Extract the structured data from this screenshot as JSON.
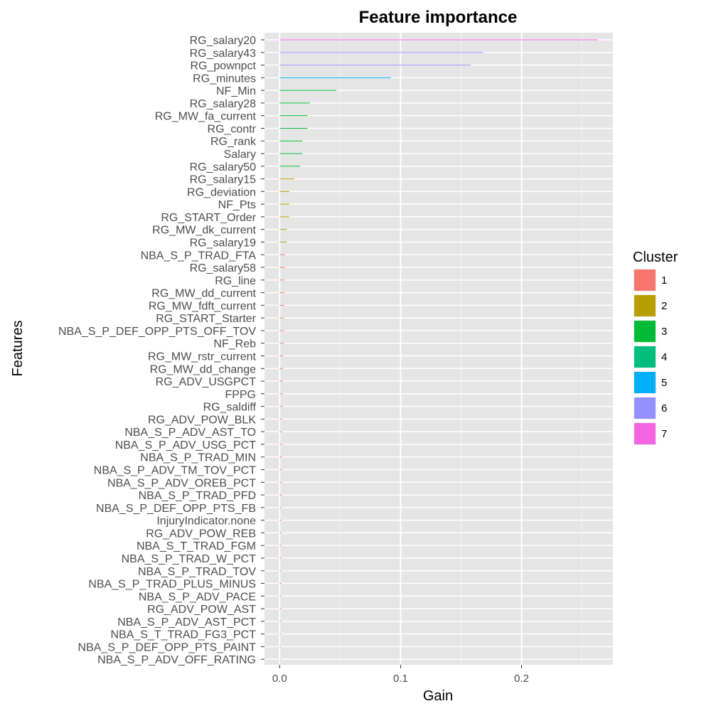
{
  "chart_data": {
    "type": "bar",
    "orientation": "horizontal",
    "title": "Feature importance",
    "xlabel": "Gain",
    "ylabel": "Features",
    "xlim": [
      -0.0125,
      0.2755
    ],
    "x_ticks": [
      0.0,
      0.1,
      0.2
    ],
    "x_tick_labels": [
      "0.0",
      "0.1",
      "0.2"
    ],
    "grid": true,
    "legend": {
      "title": "Cluster",
      "placement": "right",
      "entries": [
        {
          "label": "1",
          "color": "#F8766D"
        },
        {
          "label": "2",
          "color": "#B79F00"
        },
        {
          "label": "3",
          "color": "#00BA38"
        },
        {
          "label": "4",
          "color": "#00BF7D"
        },
        {
          "label": "5",
          "color": "#00B0F6"
        },
        {
          "label": "6",
          "color": "#9590FF"
        },
        {
          "label": "7",
          "color": "#F564E3"
        }
      ]
    },
    "bars": [
      {
        "feature": "RG_salary20",
        "gain": 0.263,
        "cluster": "7"
      },
      {
        "feature": "RG_salary43",
        "gain": 0.168,
        "cluster": "6"
      },
      {
        "feature": "RG_pownpct",
        "gain": 0.158,
        "cluster": "6"
      },
      {
        "feature": "RG_minutes",
        "gain": 0.092,
        "cluster": "5"
      },
      {
        "feature": "NF_Min",
        "gain": 0.047,
        "cluster": "3"
      },
      {
        "feature": "RG_salary28",
        "gain": 0.025,
        "cluster": "3"
      },
      {
        "feature": "RG_MW_fa_current",
        "gain": 0.023,
        "cluster": "3"
      },
      {
        "feature": "RG_contr",
        "gain": 0.023,
        "cluster": "3"
      },
      {
        "feature": "RG_rank",
        "gain": 0.019,
        "cluster": "3"
      },
      {
        "feature": "Salary",
        "gain": 0.019,
        "cluster": "3"
      },
      {
        "feature": "RG_salary50",
        "gain": 0.017,
        "cluster": "3"
      },
      {
        "feature": "RG_salary15",
        "gain": 0.012,
        "cluster": "2"
      },
      {
        "feature": "RG_deviation",
        "gain": 0.008,
        "cluster": "2"
      },
      {
        "feature": "NF_Pts",
        "gain": 0.008,
        "cluster": "2"
      },
      {
        "feature": "RG_START_Order",
        "gain": 0.008,
        "cluster": "2"
      },
      {
        "feature": "RG_MW_dk_current",
        "gain": 0.006,
        "cluster": "2"
      },
      {
        "feature": "RG_salary19",
        "gain": 0.006,
        "cluster": "2"
      },
      {
        "feature": "NBA_S_P_TRAD_FTA",
        "gain": 0.0045,
        "cluster": "1"
      },
      {
        "feature": "RG_salary58",
        "gain": 0.0045,
        "cluster": "1"
      },
      {
        "feature": "RG_line",
        "gain": 0.004,
        "cluster": "1"
      },
      {
        "feature": "RG_MW_dd_current",
        "gain": 0.004,
        "cluster": "1"
      },
      {
        "feature": "RG_MW_fdft_current",
        "gain": 0.004,
        "cluster": "1"
      },
      {
        "feature": "RG_START_Starter",
        "gain": 0.0035,
        "cluster": "1"
      },
      {
        "feature": "NBA_S_P_DEF_OPP_PTS_OFF_TOV",
        "gain": 0.0035,
        "cluster": "1"
      },
      {
        "feature": "NF_Reb",
        "gain": 0.0035,
        "cluster": "1"
      },
      {
        "feature": "RG_MW_rstr_current",
        "gain": 0.003,
        "cluster": "1"
      },
      {
        "feature": "RG_MW_dd_change",
        "gain": 0.003,
        "cluster": "1"
      },
      {
        "feature": "RG_ADV_USGPCT",
        "gain": 0.0025,
        "cluster": "1"
      },
      {
        "feature": "FPPG",
        "gain": 0.0025,
        "cluster": "1"
      },
      {
        "feature": "RG_saldiff",
        "gain": 0.0025,
        "cluster": "1"
      },
      {
        "feature": "RG_ADV_POW_BLK",
        "gain": 0.002,
        "cluster": "1"
      },
      {
        "feature": "NBA_S_P_ADV_AST_TO",
        "gain": 0.002,
        "cluster": "1"
      },
      {
        "feature": "NBA_S_P_ADV_USG_PCT",
        "gain": 0.002,
        "cluster": "1"
      },
      {
        "feature": "NBA_S_P_TRAD_MIN",
        "gain": 0.002,
        "cluster": "1"
      },
      {
        "feature": "NBA_S_P_ADV_TM_TOV_PCT",
        "gain": 0.002,
        "cluster": "1"
      },
      {
        "feature": "NBA_S_P_ADV_OREB_PCT",
        "gain": 0.002,
        "cluster": "1"
      },
      {
        "feature": "NBA_S_P_TRAD_PFD",
        "gain": 0.002,
        "cluster": "1"
      },
      {
        "feature": "NBA_S_P_DEF_OPP_PTS_FB",
        "gain": 0.0015,
        "cluster": "1"
      },
      {
        "feature": "InjuryIndicator.none",
        "gain": 0.0015,
        "cluster": "1"
      },
      {
        "feature": "RG_ADV_POW_REB",
        "gain": 0.0015,
        "cluster": "1"
      },
      {
        "feature": "NBA_S_T_TRAD_FGM",
        "gain": 0.0015,
        "cluster": "1"
      },
      {
        "feature": "NBA_S_P_TRAD_W_PCT",
        "gain": 0.0015,
        "cluster": "1"
      },
      {
        "feature": "NBA_S_P_TRAD_TOV",
        "gain": 0.0015,
        "cluster": "1"
      },
      {
        "feature": "NBA_S_P_TRAD_PLUS_MINUS",
        "gain": 0.0015,
        "cluster": "1"
      },
      {
        "feature": "NBA_S_P_ADV_PACE",
        "gain": 0.0015,
        "cluster": "1"
      },
      {
        "feature": "RG_ADV_POW_AST",
        "gain": 0.0015,
        "cluster": "1"
      },
      {
        "feature": "NBA_S_P_ADV_AST_PCT",
        "gain": 0.0015,
        "cluster": "1"
      },
      {
        "feature": "NBA_S_T_TRAD_FG3_PCT",
        "gain": 0.001,
        "cluster": "1"
      },
      {
        "feature": "NBA_S_P_DEF_OPP_PTS_PAINT",
        "gain": 0.001,
        "cluster": "1"
      },
      {
        "feature": "NBA_S_P_ADV_OFF_RATING",
        "gain": 0.001,
        "cluster": "1"
      }
    ],
    "colors": {
      "panel_background": "#E5E5E5",
      "grid_major": "#FFFFFF",
      "grid_minor": "#F2F2F2"
    }
  }
}
